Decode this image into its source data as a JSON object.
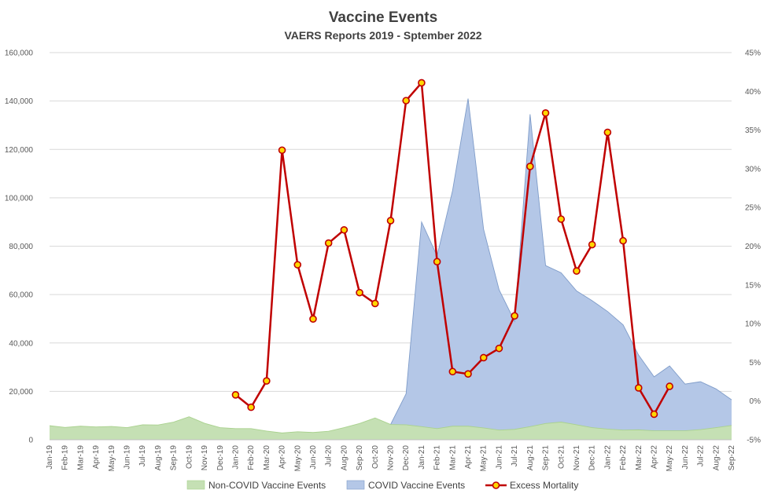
{
  "chart_data": {
    "type": "area",
    "title": "Vaccine Events",
    "subtitle": "VAERS Reports 2019 - Sptember 2022",
    "categories": [
      "Jan-19",
      "Feb-19",
      "Mar-19",
      "Apr-19",
      "May-19",
      "Jun-19",
      "Jul-19",
      "Aug-19",
      "Sep-19",
      "Oct-19",
      "Nov-19",
      "Dec-19",
      "Jan-20",
      "Feb-20",
      "Mar-20",
      "Apr-20",
      "May-20",
      "Jun-20",
      "Jul-20",
      "Aug-20",
      "Sep-20",
      "Oct-20",
      "Nov-20",
      "Dec-20",
      "Jan-21",
      "Feb-21",
      "Mar-21",
      "Apr-21",
      "May-21",
      "Jun-21",
      "Jul-21",
      "Aug-21",
      "Sep-21",
      "Oct-21",
      "Nov-21",
      "Dec-21",
      "Jan-22",
      "Feb-22",
      "Mar-22",
      "Apr-22",
      "May-22",
      "Jun-22",
      "Jul-22",
      "Aug-22",
      "Sep-22"
    ],
    "y_left": {
      "min": 0,
      "max": 160000,
      "step": 20000,
      "tick_labels": [
        "0",
        "20,000",
        "40,000",
        "60,000",
        "80,000",
        "100,000",
        "120,000",
        "140,000",
        "160,000"
      ]
    },
    "y_right": {
      "min": -5,
      "max": 45,
      "step": 5,
      "tick_labels": [
        "-5%",
        "0%",
        "5%",
        "10%",
        "15%",
        "20%",
        "25%",
        "30%",
        "35%",
        "40%",
        "45%"
      ]
    },
    "series": [
      {
        "name": "Non-COVID Vaccine Events",
        "type": "area",
        "axis": "left",
        "color": "#c5e0b4",
        "stroke": "#a9d18e",
        "values": [
          5800,
          5100,
          5600,
          5300,
          5500,
          5000,
          6200,
          6100,
          7300,
          9500,
          6800,
          5000,
          4600,
          4600,
          3600,
          2800,
          3300,
          3000,
          3500,
          5000,
          6700,
          9000,
          6300,
          6200,
          5400,
          4600,
          5600,
          5600,
          4900,
          4000,
          4300,
          5400,
          6700,
          7300,
          6200,
          5000,
          4400,
          4000,
          4100,
          3700,
          3700,
          3700,
          4200,
          5000,
          5900
        ]
      },
      {
        "name": "COVID Vaccine Events",
        "type": "area",
        "axis": "left",
        "color": "#b4c7e7",
        "stroke": "#7f9cc9",
        "values": [
          0,
          0,
          0,
          0,
          0,
          0,
          0,
          0,
          0,
          0,
          0,
          0,
          0,
          0,
          0,
          0,
          0,
          0,
          0,
          0,
          0,
          0,
          6300,
          19000,
          90000,
          76000,
          103000,
          141000,
          87000,
          62000,
          49000,
          134500,
          72000,
          69000,
          61500,
          57500,
          53000,
          47500,
          35000,
          26000,
          30500,
          23000,
          24000,
          21000,
          16500
        ]
      },
      {
        "name": "Excess Mortality",
        "type": "line",
        "axis": "right",
        "color": "#c00000",
        "marker": "#ffd700",
        "values": [
          null,
          null,
          null,
          null,
          null,
          null,
          null,
          null,
          null,
          null,
          null,
          null,
          0.8,
          -0.8,
          2.6,
          32.4,
          17.6,
          10.6,
          20.4,
          22.1,
          14.0,
          12.6,
          23.3,
          38.8,
          41.1,
          18.0,
          3.8,
          3.5,
          5.6,
          6.8,
          11.0,
          30.3,
          37.2,
          23.5,
          16.8,
          20.2,
          34.7,
          20.7,
          1.7,
          -1.7,
          1.9,
          null,
          null,
          null,
          null
        ]
      }
    ],
    "legend_position": "bottom",
    "grid": true
  }
}
